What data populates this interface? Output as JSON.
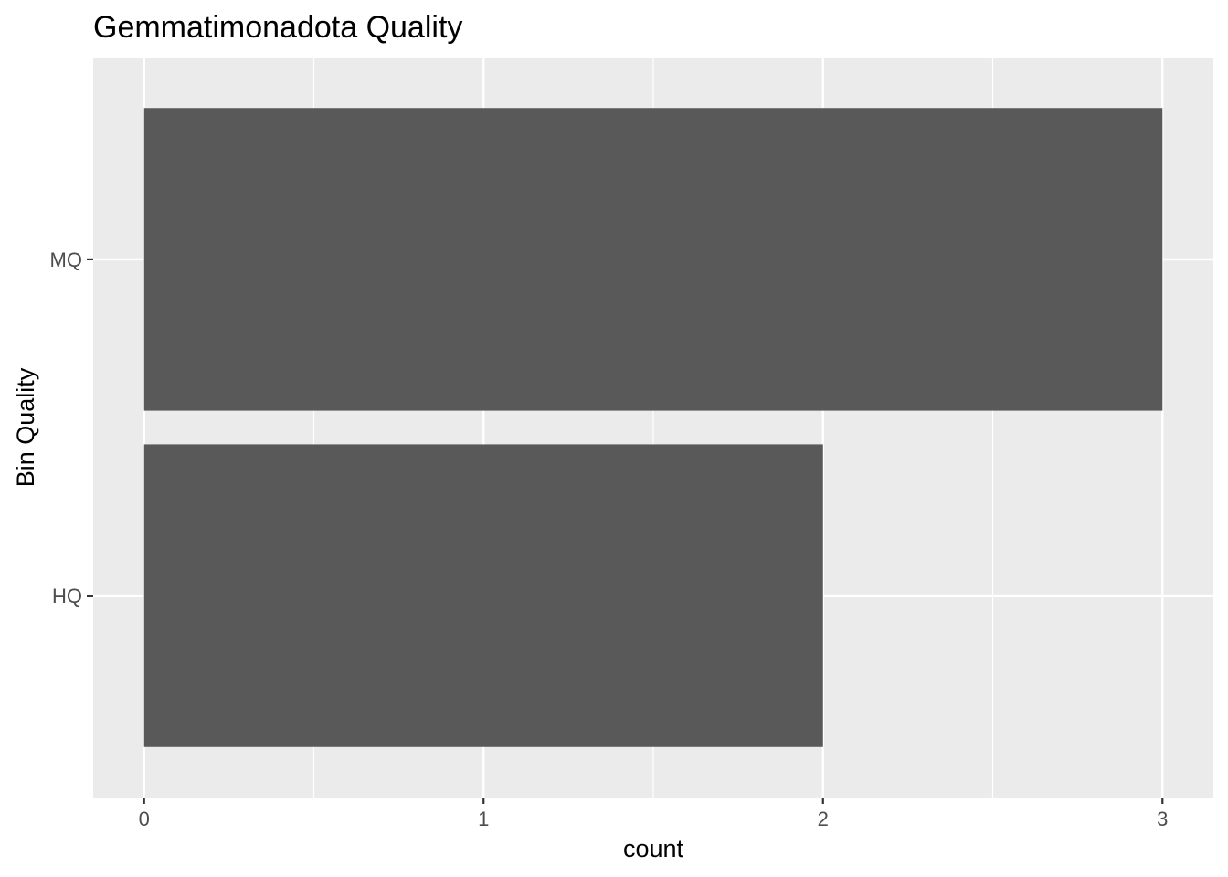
{
  "chart_data": {
    "type": "bar",
    "orientation": "horizontal",
    "title": "Gemmatimonadota Quality",
    "xlabel": "count",
    "ylabel": "Bin Quality",
    "categories": [
      "HQ",
      "MQ"
    ],
    "values": [
      2,
      3
    ],
    "xlim": [
      -0.15,
      3.15
    ],
    "x_ticks": [
      0,
      1,
      2,
      3
    ],
    "x_tick_labels": [
      "0",
      "1",
      "2",
      "3"
    ],
    "grid": true,
    "legend": "none",
    "colors": {
      "panel_background": "#ebebeb",
      "grid_line": "#ffffff",
      "bar_fill": "#595959",
      "tick_label": "#4d4d4d",
      "tick_mark": "#333333",
      "text": "#000000"
    }
  }
}
